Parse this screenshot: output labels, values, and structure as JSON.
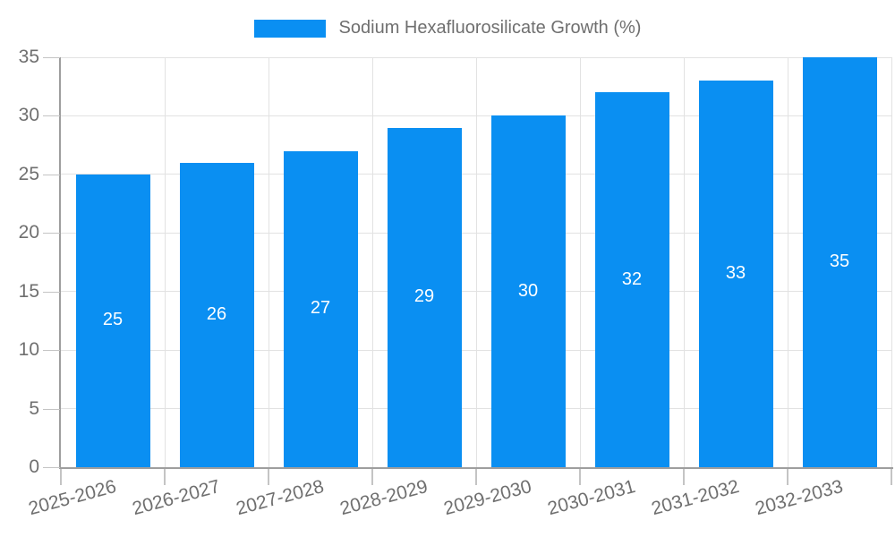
{
  "legend": {
    "label": "Sodium Hexafluorosilicate Growth (%)"
  },
  "colors": {
    "bar": "#0a8ff2",
    "bar_label": "#ffffff",
    "text": "#6f6f6f",
    "grid": "#e2e2e2",
    "axis_line": "#9e9e9e",
    "tick": "#c4c4c4"
  },
  "chart_data": {
    "type": "bar",
    "title": "Sodium Hexafluorosilicate Growth (%)",
    "categories": [
      "2025-2026",
      "2026-2027",
      "2027-2028",
      "2028-2029",
      "2029-2030",
      "2030-2031",
      "2031-2032",
      "2032-2033"
    ],
    "values": [
      25,
      26,
      27,
      29,
      30,
      32,
      33,
      35
    ],
    "xlabel": "",
    "ylabel": "",
    "ylim": [
      0,
      35
    ],
    "yticks": [
      0,
      5,
      10,
      15,
      20,
      25,
      30,
      35
    ],
    "grid": true,
    "legend_position": "top",
    "bar_value_labels": true
  }
}
